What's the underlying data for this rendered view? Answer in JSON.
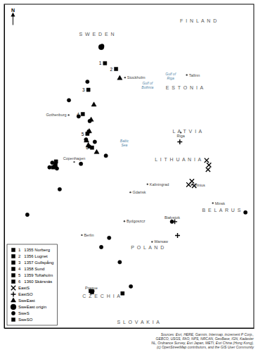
{
  "chart_data": {
    "type": "scatter",
    "color": "black",
    "xlim": [
      5.0,
      32.0
    ],
    "ylim": [
      48.5,
      62.5
    ],
    "tick_labels": false,
    "grid": false,
    "legend": "lower left",
    "series": [
      {
        "name": "1   1355 Norberg",
        "marker": "square",
        "x": [
          15.9
        ],
        "y": [
          59.95
        ],
        "labels": [
          "1"
        ]
      },
      {
        "name": "2   1356 Lugnet",
        "marker": "square",
        "x": [
          17.1
        ],
        "y": [
          59.7
        ],
        "labels": [
          "2"
        ]
      },
      {
        "name": "3   1357 Gullspång",
        "marker": "square",
        "x": [
          14.1
        ],
        "y": [
          58.8
        ],
        "labels": [
          "3"
        ]
      },
      {
        "name": "4   1358 Sund",
        "marker": "square",
        "x": [
          13.5
        ],
        "y": [
          57.75
        ],
        "labels": [
          "4"
        ]
      },
      {
        "name": "5   1359 Toftaholm",
        "marker": "square",
        "x": [
          14.0
        ],
        "y": [
          56.9
        ],
        "labels": [
          "5"
        ]
      },
      {
        "name": "6   1360 Skärsnäs",
        "marker": "square",
        "x": [
          14.5
        ],
        "y": [
          56.3
        ],
        "labels": [
          "6"
        ]
      },
      {
        "name": "EastS",
        "marker": "x",
        "x": [
          26.9,
          27.15,
          27.05,
          25.3,
          25.55,
          24.95
        ],
        "y": [
          55.75,
          55.55,
          55.35,
          54.85,
          54.65,
          54.7
        ]
      },
      {
        "name": "EastSO",
        "marker": "plus",
        "x": [
          24.0,
          23.45,
          23.75
        ],
        "y": [
          56.55,
          53.1,
          52.5
        ]
      },
      {
        "name": "SweEast",
        "marker": "triangle",
        "x": [
          17.5,
          14.7,
          14.4,
          14.2,
          13.9,
          14.1,
          15.0
        ],
        "y": [
          59.3,
          58.15,
          57.5,
          57.0,
          56.6,
          56.4,
          56.1
        ]
      },
      {
        "name": "SweEast origin",
        "marker": "large-circle",
        "x": [
          15.5
        ],
        "y": [
          60.65
        ]
      },
      {
        "name": "SweS",
        "marker": "circle",
        "x": [
          15.6,
          14.0,
          12.0,
          13.05,
          14.25,
          14.15,
          13.85,
          14.2,
          16.0,
          14.8,
          13.3,
          10.2,
          10.45,
          9.9,
          11.0,
          10.7,
          7.5,
          14.55,
          18.7,
          16.35,
          23.15,
          15.5,
          17.5,
          31.1
        ],
        "y": [
          60.7,
          59.15,
          58.35,
          57.65,
          57.45,
          57.0,
          56.65,
          56.35,
          55.95,
          56.55,
          55.6,
          55.65,
          55.5,
          55.45,
          54.5,
          55.4,
          53.4,
          50.1,
          50.3,
          52.4,
          53.1,
          52.0,
          51.35,
          53.5
        ]
      },
      {
        "name": "SweSO",
        "marker": "square",
        "x": [
          10.6,
          10.55,
          10.3,
          14.5,
          17.8,
          14.35
        ],
        "y": [
          55.7,
          55.55,
          55.45,
          50.05,
          50.0,
          50.1
        ]
      }
    ],
    "annotations": [
      {
        "text": "S  W  E  D  E  N",
        "x": 15.0,
        "y": 61.2,
        "color": "#555555"
      },
      {
        "text": "F  I  N  L  A  N  D",
        "x": 26.0,
        "y": 61.8,
        "color": "#555555"
      },
      {
        "text": "E  S  T  O  N  I  A",
        "x": 24.5,
        "y": 58.9,
        "color": "#555555"
      },
      {
        "text": "L  A  T  V  I  A",
        "x": 24.8,
        "y": 57.0,
        "color": "#555555"
      },
      {
        "text": "L  I  T  H  U  A  N  I  A",
        "x": 23.8,
        "y": 55.8,
        "color": "#555555"
      },
      {
        "text": "P  O  L  A  N  D",
        "x": 20.5,
        "y": 52.0,
        "color": "#555555"
      },
      {
        "text": "B  E  L  A  R  U  S",
        "x": 28.5,
        "y": 53.6,
        "color": "#555555"
      },
      {
        "text": "C  Z  E  C  H  I  A",
        "x": 15.5,
        "y": 49.9,
        "color": "#555555"
      },
      {
        "text": "S  L  O  V  A  K  I  A",
        "x": 19.5,
        "y": 48.75,
        "color": "#555555"
      }
    ],
    "water_labels": [
      {
        "text": [
          "Gulf of",
          "Bothnia"
        ],
        "x": 20.5,
        "y": 59.0,
        "color": "#5588aa"
      },
      {
        "text": [
          "Baltic",
          "Sea"
        ],
        "x": 18.0,
        "y": 56.5,
        "color": "#5588aa"
      },
      {
        "text": [
          "Gulf of",
          "Riga"
        ],
        "x": 23.0,
        "y": 59.4,
        "color": "#5588aa"
      }
    ],
    "cities": [
      {
        "text": "Stockholm",
        "x": 18.07,
        "y": 59.33,
        "color": "#444444"
      },
      {
        "text": "Riga",
        "x": 24.1,
        "y": 56.95,
        "color": "#444444"
      },
      {
        "text": "Vilnius",
        "x": 25.28,
        "y": 54.69,
        "color": "#444444"
      },
      {
        "text": "Tallinn",
        "x": 24.75,
        "y": 59.44,
        "color": "#444444"
      },
      {
        "text": "Kaliningrad",
        "x": 20.5,
        "y": 54.72,
        "color": "#444444"
      },
      {
        "text": "Berlin",
        "x": 13.4,
        "y": 52.52,
        "color": "#444444"
      },
      {
        "text": "Warsaw",
        "x": 21.0,
        "y": 52.23,
        "color": "#444444"
      },
      {
        "text": "Minsk",
        "x": 27.57,
        "y": 53.9,
        "color": "#444444"
      },
      {
        "text": "Prague",
        "x": 14.42,
        "y": 50.08,
        "color": "#444444"
      },
      {
        "text": "Bydgoszcz",
        "x": 18.0,
        "y": 53.12,
        "color": "#444444"
      },
      {
        "text": "Białystok",
        "x": 23.17,
        "y": 53.13,
        "color": "#444444"
      },
      {
        "text": "Gdańsk",
        "x": 18.65,
        "y": 54.37,
        "color": "#444444"
      },
      {
        "text": "Copenhagen",
        "x": 12.57,
        "y": 55.68,
        "color": "#444444"
      },
      {
        "text": "Gothenburg",
        "x": 11.97,
        "y": 57.71,
        "color": "#444444"
      }
    ],
    "north_label": "N",
    "source": [
      "Sources: Esri, HERE, Garmin, Intermap, increment P Corp.,",
      "GEBCO, USGS, FAO, NPS, NRCAN, GeoBase, IGN, Kadaster",
      "NL, Ordnance Survey, Esri Japan, METI, Esri China (Hong Kong),",
      "(c) OpenStreetMap contributors, and the GIS User Community"
    ]
  }
}
